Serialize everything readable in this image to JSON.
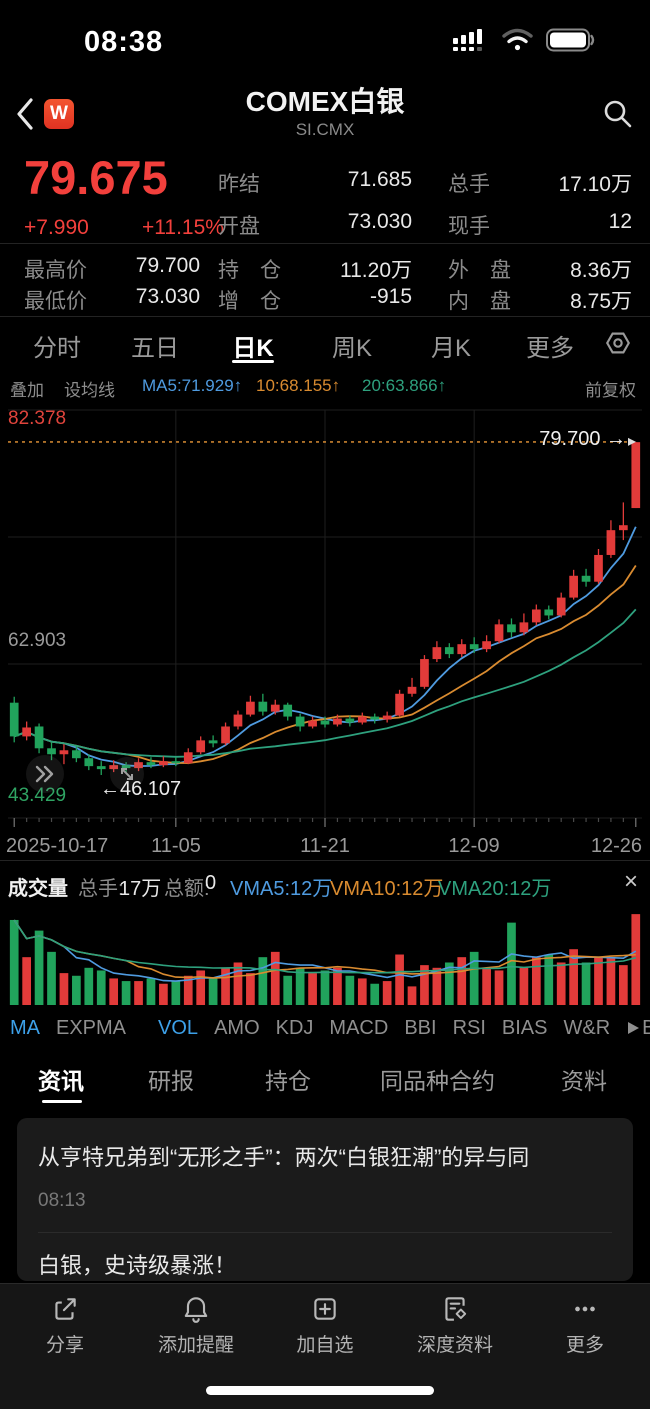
{
  "status_bar": {
    "time": "08:38"
  },
  "header": {
    "badge": "W",
    "title": "COMEX白银",
    "subtitle": "SI.CMX"
  },
  "quote": {
    "price": "79.675",
    "change": "+7.990",
    "change_pct": "+11.15%",
    "fields": [
      {
        "label": "昨结",
        "value": "71.685"
      },
      {
        "label": "总手",
        "value": "17.10万"
      },
      {
        "label": "开盘",
        "value": "73.030"
      },
      {
        "label": "现手",
        "value": "12"
      }
    ],
    "stats": [
      {
        "label": "最高价",
        "value": "79.700"
      },
      {
        "label": "持　仓",
        "value": "11.20万"
      },
      {
        "label": "外　盘",
        "value": "8.36万"
      },
      {
        "label": "最低价",
        "value": "73.030"
      },
      {
        "label": "增　仓",
        "value": "-915"
      },
      {
        "label": "内　盘",
        "value": "8.75万"
      }
    ]
  },
  "period_tabs": {
    "items": [
      "分时",
      "五日",
      "日K",
      "周K",
      "月K",
      "更多"
    ],
    "selected": "日K"
  },
  "ma_bar": {
    "overlay": "叠加",
    "set_avg": "设均线",
    "ma5": "MA5:71.929↑",
    "ma10": "10:68.155↑",
    "ma20": "20:63.866↑",
    "adjust": "前复权"
  },
  "chart_data": {
    "type": "candlestick",
    "title": "COMEX白银 日K",
    "y_axis_labels": [
      "82.378",
      "62.903",
      "43.429"
    ],
    "x_axis_labels": [
      "2025-10-17",
      "11-05",
      "11-21",
      "12-09",
      "12-26"
    ],
    "grid_indexes": [
      13,
      25,
      37
    ],
    "anchor_indexes": [
      0,
      13,
      25,
      37,
      50
    ],
    "price_range": [
      41.77,
      82.92
    ],
    "last_price_line": {
      "price": 79.7,
      "label": "79.700 →"
    },
    "low_annotation": {
      "price": 46.107,
      "label": "←46.107"
    },
    "ma_periods": [
      {
        "n": 5,
        "color": "#4f9be0"
      },
      {
        "n": 10,
        "color": "#d98b30"
      },
      {
        "n": 20,
        "color": "#2ea17e"
      }
    ],
    "colors": {
      "up": "#e23b3a",
      "down": "#21a35c",
      "dashed_line": "#c8812f",
      "grid": "#1e1e1e"
    },
    "vol_max": 17.5,
    "candles": [
      [
        53.4,
        50.0,
        54.0,
        49.4,
        16.0
      ],
      [
        50.0,
        50.9,
        51.5,
        49.6,
        9.0
      ],
      [
        51.0,
        48.8,
        51.3,
        48.3,
        14.0
      ],
      [
        48.8,
        48.2,
        49.4,
        47.6,
        10.0
      ],
      [
        48.2,
        48.6,
        49.2,
        47.2,
        6.0
      ],
      [
        48.6,
        47.8,
        49.0,
        47.4,
        5.5
      ],
      [
        47.8,
        47.0,
        48.2,
        46.6,
        7.0
      ],
      [
        47.0,
        46.7,
        47.5,
        46.107,
        6.5
      ],
      [
        46.7,
        47.1,
        47.6,
        46.4,
        5.0
      ],
      [
        47.1,
        46.8,
        47.4,
        46.3,
        4.5
      ],
      [
        46.8,
        47.4,
        47.8,
        46.5,
        4.5
      ],
      [
        47.4,
        47.1,
        47.9,
        46.8,
        5.0
      ],
      [
        47.1,
        47.5,
        48.0,
        46.9,
        4.0
      ],
      [
        47.5,
        47.3,
        47.9,
        47.0,
        4.5
      ],
      [
        47.3,
        48.4,
        48.8,
        47.2,
        5.5
      ],
      [
        48.4,
        49.6,
        50.0,
        48.2,
        6.5
      ],
      [
        49.6,
        49.3,
        50.1,
        48.9,
        5.0
      ],
      [
        49.3,
        51.0,
        51.4,
        49.1,
        7.0
      ],
      [
        51.0,
        52.2,
        52.6,
        50.7,
        8.0
      ],
      [
        52.2,
        53.5,
        54.1,
        52.0,
        6.0
      ],
      [
        53.5,
        52.5,
        54.3,
        52.1,
        9.0
      ],
      [
        52.5,
        53.2,
        53.7,
        52.2,
        10.0
      ],
      [
        53.2,
        52.0,
        53.4,
        51.6,
        5.5
      ],
      [
        52.0,
        51.0,
        52.3,
        50.5,
        7.0
      ],
      [
        51.0,
        51.6,
        52.0,
        50.8,
        6.0
      ],
      [
        51.6,
        51.2,
        52.0,
        50.9,
        6.5
      ],
      [
        51.2,
        51.8,
        52.2,
        51.0,
        7.0
      ],
      [
        51.8,
        51.4,
        52.1,
        51.0,
        5.5
      ],
      [
        51.4,
        52.0,
        52.4,
        51.2,
        5.0
      ],
      [
        52.0,
        51.7,
        52.3,
        51.3,
        4.0
      ],
      [
        51.7,
        52.1,
        52.5,
        51.4,
        4.5
      ],
      [
        52.1,
        54.3,
        54.7,
        52.0,
        9.5
      ],
      [
        54.3,
        55.0,
        55.9,
        54.0,
        3.5
      ],
      [
        55.0,
        57.8,
        58.2,
        54.8,
        7.5
      ],
      [
        57.8,
        59.0,
        59.6,
        57.5,
        7.0
      ],
      [
        59.0,
        58.3,
        59.4,
        57.9,
        8.0
      ],
      [
        58.3,
        59.3,
        59.8,
        58.0,
        9.0
      ],
      [
        59.3,
        58.8,
        60.0,
        58.4,
        10.0
      ],
      [
        58.8,
        59.6,
        60.2,
        58.5,
        7.0
      ],
      [
        59.6,
        61.3,
        61.8,
        59.4,
        6.5
      ],
      [
        61.3,
        60.5,
        61.9,
        60.0,
        15.5
      ],
      [
        60.5,
        61.5,
        62.4,
        60.2,
        7.0
      ],
      [
        61.5,
        62.8,
        63.3,
        61.2,
        9.0
      ],
      [
        62.8,
        62.2,
        63.2,
        61.8,
        9.5
      ],
      [
        62.2,
        64.0,
        64.5,
        62.0,
        8.0
      ],
      [
        64.0,
        66.2,
        66.8,
        63.8,
        10.5
      ],
      [
        66.2,
        65.6,
        66.9,
        65.1,
        8.0
      ],
      [
        65.6,
        68.3,
        68.9,
        65.4,
        9.0
      ],
      [
        68.3,
        70.8,
        71.8,
        68.0,
        9.0
      ],
      [
        70.8,
        71.3,
        73.6,
        69.8,
        7.5
      ],
      [
        73.03,
        79.675,
        79.7,
        73.03,
        17.1
      ]
    ]
  },
  "volume_bar": {
    "title": "成交量",
    "zs_label": "总手:",
    "zs_value": "17万",
    "ze_label": "总额:",
    "ze_value": "0",
    "vma5": "VMA5:12万",
    "vma10": "VMA10:12万",
    "vma20": "VMA20:12万",
    "close": "×"
  },
  "indicator_tabs": {
    "items": [
      "MA",
      "EXPMA",
      "VOL",
      "AMO",
      "KDJ",
      "MACD",
      "BBI",
      "RSI",
      "BIAS",
      "W&R",
      "BO"
    ],
    "active": [
      "MA",
      "VOL"
    ]
  },
  "news_tabs": {
    "items": [
      "资讯",
      "研报",
      "持仓",
      "同品种合约",
      "资料"
    ],
    "selected": "资讯"
  },
  "news": {
    "items": [
      {
        "title": "从亨特兄弟到“无形之手”：两次“白银狂潮”的异与同",
        "time": "08:13"
      },
      {
        "title": "白银，史诗级暴涨！",
        "time": ""
      }
    ]
  },
  "bottom_bar": {
    "items": [
      {
        "label": "分享"
      },
      {
        "label": "添加提醒"
      },
      {
        "label": "加自选"
      },
      {
        "label": "深度资料"
      },
      {
        "label": "更多"
      }
    ]
  }
}
